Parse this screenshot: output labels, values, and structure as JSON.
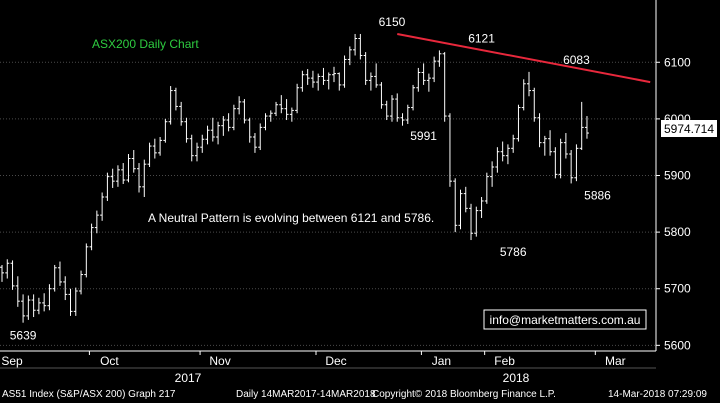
{
  "chart_data": {
    "type": "ohlc",
    "title": "ASX200 Daily Chart",
    "annotation": "A Neutral Pattern is evolving between 6121 and 5786.",
    "watermark": "info@marketmatters.com.au",
    "last_price_label": "5974.714",
    "ylim": [
      5590,
      6210
    ],
    "y_ticks": [
      5600,
      5700,
      5800,
      5900,
      6000,
      6100
    ],
    "months": [
      "Sep",
      "Oct",
      "Nov",
      "Dec",
      "Jan",
      "Feb",
      "Mar"
    ],
    "years": [
      "2017",
      "2018"
    ],
    "point_labels": [
      {
        "text": "6150",
        "x": 74,
        "y": 6150
      },
      {
        "text": "6121",
        "x": 91,
        "y": 6121
      },
      {
        "text": "6083",
        "x": 109,
        "y": 6083
      },
      {
        "text": "5991",
        "x": 80,
        "y": 5991
      },
      {
        "text": "5786",
        "x": 97,
        "y": 5786
      },
      {
        "text": "5886",
        "x": 113,
        "y": 5886
      },
      {
        "text": "5639",
        "x": 4,
        "y": 5639
      }
    ],
    "trendline": {
      "x": [
        75,
        123
      ],
      "y": [
        6150,
        6065
      ],
      "color": "#e8283c"
    },
    "colors": {
      "bars": "#ffffff",
      "title": "#2ecc40",
      "trendline": "#e8283c",
      "background": "#000000"
    },
    "bars": [
      [
        5738,
        5742,
        5712,
        5728
      ],
      [
        5728,
        5752,
        5718,
        5745
      ],
      [
        5745,
        5750,
        5698,
        5705
      ],
      [
        5705,
        5722,
        5668,
        5678
      ],
      [
        5678,
        5690,
        5640,
        5652
      ],
      [
        5652,
        5688,
        5645,
        5680
      ],
      [
        5680,
        5690,
        5650,
        5662
      ],
      [
        5662,
        5684,
        5655,
        5675
      ],
      [
        5675,
        5692,
        5660,
        5670
      ],
      [
        5670,
        5708,
        5662,
        5700
      ],
      [
        5700,
        5742,
        5695,
        5737
      ],
      [
        5737,
        5748,
        5705,
        5712
      ],
      [
        5712,
        5722,
        5680,
        5690
      ],
      [
        5690,
        5700,
        5652,
        5660
      ],
      [
        5660,
        5702,
        5652,
        5696
      ],
      [
        5696,
        5732,
        5690,
        5725
      ],
      [
        5725,
        5780,
        5720,
        5774
      ],
      [
        5774,
        5815,
        5768,
        5808
      ],
      [
        5808,
        5838,
        5798,
        5830
      ],
      [
        5830,
        5870,
        5820,
        5862
      ],
      [
        5862,
        5905,
        5855,
        5898
      ],
      [
        5898,
        5912,
        5878,
        5890
      ],
      [
        5890,
        5918,
        5880,
        5910
      ],
      [
        5910,
        5922,
        5885,
        5892
      ],
      [
        5892,
        5938,
        5888,
        5930
      ],
      [
        5930,
        5945,
        5905,
        5912
      ],
      [
        5912,
        5922,
        5870,
        5880
      ],
      [
        5880,
        5928,
        5862,
        5920
      ],
      [
        5920,
        5958,
        5915,
        5952
      ],
      [
        5952,
        5965,
        5930,
        5940
      ],
      [
        5940,
        5968,
        5935,
        5962
      ],
      [
        5962,
        6000,
        5958,
        5995
      ],
      [
        5995,
        6058,
        5990,
        6050
      ],
      [
        6050,
        6055,
        6015,
        6022
      ],
      [
        6022,
        6030,
        5988,
        5995
      ],
      [
        5995,
        6002,
        5958,
        5965
      ],
      [
        5965,
        5972,
        5925,
        5935
      ],
      [
        5935,
        5958,
        5925,
        5950
      ],
      [
        5950,
        5972,
        5940,
        5964
      ],
      [
        5964,
        5988,
        5955,
        5980
      ],
      [
        5980,
        6002,
        5960,
        5968
      ],
      [
        5968,
        5995,
        5955,
        5988
      ],
      [
        5988,
        6005,
        5970,
        5998
      ],
      [
        5998,
        6010,
        5978,
        5985
      ],
      [
        5985,
        6025,
        5980,
        6018
      ],
      [
        6018,
        6040,
        6008,
        6030
      ],
      [
        6030,
        6035,
        5992,
        5998
      ],
      [
        5998,
        6002,
        5958,
        5968
      ],
      [
        5968,
        5975,
        5940,
        5950
      ],
      [
        5950,
        5992,
        5945,
        5985
      ],
      [
        5985,
        6010,
        5980,
        6005
      ],
      [
        6005,
        6015,
        5995,
        6010
      ],
      [
        6010,
        6030,
        6005,
        6025
      ],
      [
        6025,
        6042,
        6010,
        6018
      ],
      [
        6018,
        6035,
        5998,
        6008
      ],
      [
        6008,
        6020,
        5995,
        6015
      ],
      [
        6015,
        6062,
        6010,
        6055
      ],
      [
        6055,
        6085,
        6048,
        6078
      ],
      [
        6078,
        6088,
        6060,
        6072
      ],
      [
        6072,
        6085,
        6055,
        6065
      ],
      [
        6065,
        6080,
        6050,
        6075
      ],
      [
        6075,
        6090,
        6060,
        6068
      ],
      [
        6068,
        6082,
        6052,
        6078
      ],
      [
        6078,
        6092,
        6065,
        6080
      ],
      [
        6080,
        6082,
        6050,
        6060
      ],
      [
        6060,
        6112,
        6055,
        6105
      ],
      [
        6105,
        6128,
        6095,
        6122
      ],
      [
        6122,
        6150,
        6112,
        6142
      ],
      [
        6142,
        6150,
        6105,
        6112
      ],
      [
        6112,
        6118,
        6060,
        6068
      ],
      [
        6068,
        6082,
        6050,
        6075
      ],
      [
        6075,
        6098,
        6055,
        6060
      ],
      [
        6060,
        6065,
        6018,
        6025
      ],
      [
        6025,
        6032,
        5998,
        6005
      ],
      [
        6005,
        6042,
        5995,
        6035
      ],
      [
        6035,
        6045,
        5995,
        6002
      ],
      [
        6002,
        6010,
        5988,
        5998
      ],
      [
        5998,
        6025,
        5991,
        6020
      ],
      [
        6020,
        6060,
        6015,
        6055
      ],
      [
        6055,
        6090,
        6048,
        6082
      ],
      [
        6082,
        6098,
        6060,
        6068
      ],
      [
        6068,
        6080,
        6048,
        6072
      ],
      [
        6072,
        6110,
        6065,
        6102
      ],
      [
        6102,
        6121,
        6092,
        6115
      ],
      [
        6115,
        6118,
        5995,
        6005
      ],
      [
        6005,
        6010,
        5880,
        5890
      ],
      [
        5890,
        5895,
        5800,
        5812
      ],
      [
        5812,
        5875,
        5805,
        5868
      ],
      [
        5868,
        5880,
        5835,
        5842
      ],
      [
        5842,
        5850,
        5786,
        5798
      ],
      [
        5798,
        5845,
        5792,
        5838
      ],
      [
        5838,
        5862,
        5825,
        5855
      ],
      [
        5855,
        5905,
        5850,
        5898
      ],
      [
        5898,
        5925,
        5880,
        5915
      ],
      [
        5915,
        5950,
        5905,
        5942
      ],
      [
        5942,
        5960,
        5925,
        5935
      ],
      [
        5935,
        5955,
        5920,
        5948
      ],
      [
        5948,
        5972,
        5940,
        5965
      ],
      [
        5965,
        6025,
        5960,
        6020
      ],
      [
        6020,
        6070,
        6015,
        6062
      ],
      [
        6062,
        6083,
        6040,
        6050
      ],
      [
        6050,
        6055,
        5995,
        6002
      ],
      [
        6002,
        6010,
        5950,
        5958
      ],
      [
        5958,
        5970,
        5935,
        5965
      ],
      [
        5965,
        5980,
        5935,
        5942
      ],
      [
        5942,
        5950,
        5895,
        5902
      ],
      [
        5902,
        5965,
        5895,
        5958
      ],
      [
        5958,
        5975,
        5930,
        5938
      ],
      [
        5938,
        5945,
        5886,
        5896
      ],
      [
        5896,
        5955,
        5890,
        5948
      ],
      [
        5948,
        6030,
        5945,
        5985
      ],
      [
        5985,
        6005,
        5965,
        5975
      ]
    ]
  },
  "footer": {
    "left": "AS51 Index (S&P/ASX 200) Graph 217",
    "middle": "Daily 14MAR2017-14MAR2018",
    "right_copy": "Copyright© 2018 Bloomberg Finance L.P.",
    "timestamp": "14-Mar-2018 07:29:09"
  }
}
